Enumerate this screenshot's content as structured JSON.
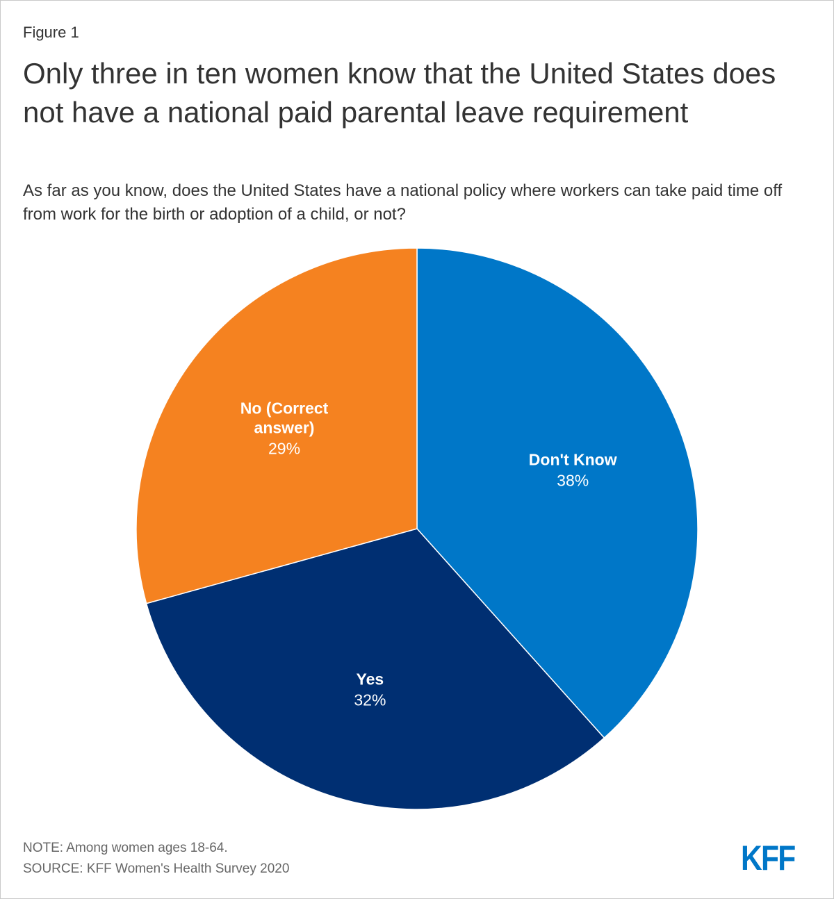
{
  "figure_label": "Figure 1",
  "title": "Only three in ten women know that the United States does not have a national paid parental leave requirement",
  "subtitle": "As far as you know, does the United States have a national policy where workers can take paid time off from work for the birth or adoption of a child, or not?",
  "note": "NOTE: Among women ages 18-64.",
  "source": "SOURCE: KFF Women's Health Survey 2020",
  "logo_text": "KFF",
  "colors": {
    "dont_know": "#0077c8",
    "yes": "#002f72",
    "no": "#f58220",
    "text": "#333333",
    "note_text": "#666666",
    "brand": "#0077c8"
  },
  "chart_data": {
    "type": "pie",
    "title": "Only three in ten women know that the United States does not have a national paid parental leave requirement",
    "slices": [
      {
        "label": "Don't Know",
        "label_lines": [
          "Don't Know"
        ],
        "value": 38,
        "value_label": "38%",
        "color": "#0077c8"
      },
      {
        "label": "Yes",
        "label_lines": [
          "Yes"
        ],
        "value": 32,
        "value_label": "32%",
        "color": "#002f72"
      },
      {
        "label": "No (Correct answer)",
        "label_lines": [
          "No (Correct",
          "answer)"
        ],
        "value": 29,
        "value_label": "29%",
        "color": "#f58220"
      }
    ],
    "start_angle_deg": 0,
    "direction": "clockwise"
  }
}
